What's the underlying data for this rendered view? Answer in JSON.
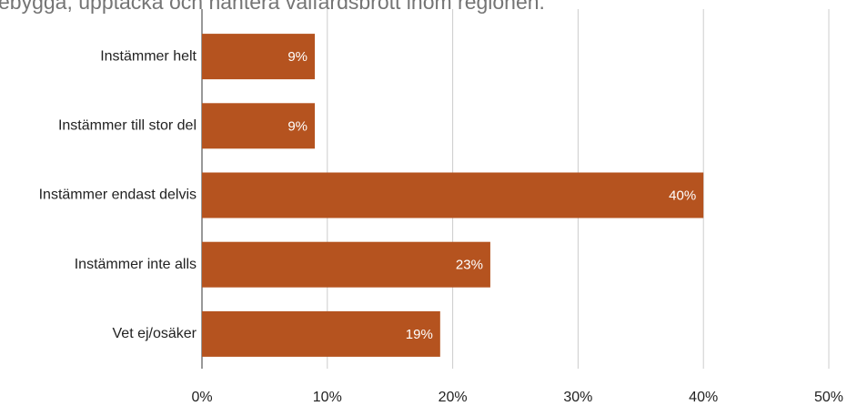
{
  "chart_data": {
    "type": "bar",
    "orientation": "horizontal",
    "title": "ebygga, upptäcka och hantera välfärdsbrott inom regionen.",
    "categories": [
      "Instämmer helt",
      "Instämmer till stor del",
      "Instämmer endast delvis",
      "Instämmer inte alls",
      "Vet ej/osäker"
    ],
    "values": [
      9,
      9,
      40,
      23,
      19
    ],
    "value_labels": [
      "9%",
      "9%",
      "40%",
      "23%",
      "19%"
    ],
    "color": "#b5531f",
    "xlim": [
      0,
      50
    ],
    "xticks": [
      {
        "value": 0,
        "label": "0%"
      },
      {
        "value": 10,
        "label": "10%"
      },
      {
        "value": 20,
        "label": "20%"
      },
      {
        "value": 30,
        "label": "30%"
      },
      {
        "value": 40,
        "label": "40%"
      },
      {
        "value": 50,
        "label": "50%"
      }
    ],
    "grid": true
  }
}
